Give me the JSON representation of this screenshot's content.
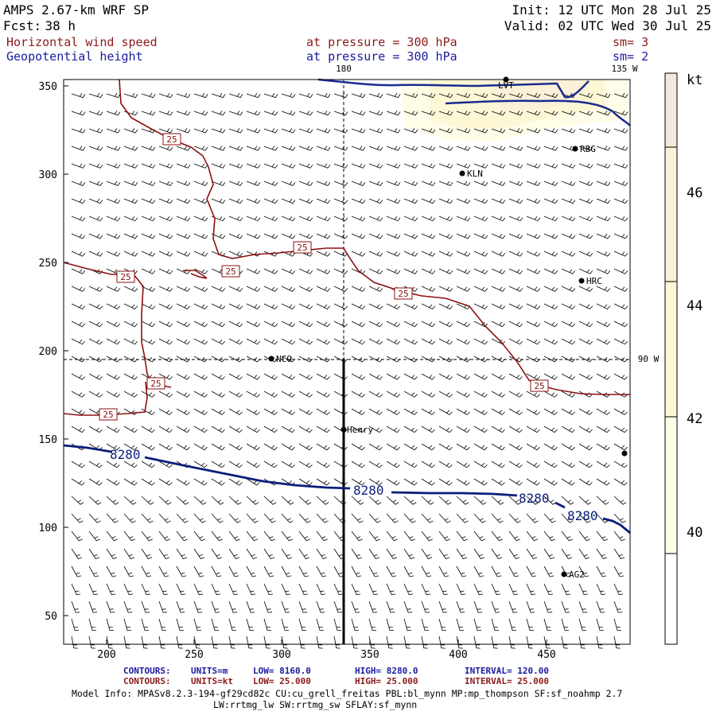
{
  "header": {
    "model": "AMPS 2.67-km WRF SP",
    "fcst_label": "Fcst:",
    "fcst_value": "38 h",
    "init": "Init: 12 UTC Mon 28 Jul 25",
    "valid": "Valid: 02 UTC Wed 30 Jul 25",
    "field1": {
      "name": "Horizontal wind speed",
      "level": "at pressure =  300 hPa",
      "smooth": "sm= 3"
    },
    "field2": {
      "name": "Geopotential height",
      "level": "at pressure =  300 hPa",
      "smooth": "sm= 2"
    }
  },
  "map": {
    "x_ticks": [
      "200",
      "250",
      "300",
      "350",
      "400",
      "450"
    ],
    "y_ticks": [
      "50",
      "100",
      "150",
      "200",
      "250",
      "300",
      "350"
    ],
    "lon_labels": {
      "top_180": "180",
      "top_135w": "135 W",
      "right_90w": "90 W"
    },
    "stations": [
      {
        "id": "LVT",
        "label": "LVT"
      },
      {
        "id": "RBG",
        "label": "RBG"
      },
      {
        "id": "KLN",
        "label": "KLN"
      },
      {
        "id": "HRC",
        "label": "HRC"
      },
      {
        "id": "NCO",
        "label": "NCO"
      },
      {
        "id": "Henry",
        "label": "Henry"
      },
      {
        "id": "AG2",
        "label": "AG2"
      }
    ],
    "speed_contour_label": "25",
    "height_contour_label": "8280"
  },
  "colorbar": {
    "unit": "kt",
    "ticks": [
      "40",
      "42",
      "44",
      "46"
    ],
    "colors": [
      "#ffffff",
      "#fffce8",
      "#fdf7d6",
      "#fbf0d8",
      "#f4e8dc"
    ]
  },
  "footer": {
    "line1": {
      "label": "CONTOURS:",
      "units": "UNITS=m",
      "low": "LOW=   8160.0",
      "high": "HIGH=  8280.0",
      "interval": "INTERVAL=   120.00"
    },
    "line2": {
      "label": "CONTOURS:",
      "units": "UNITS=kt",
      "low": "LOW=  25.000",
      "high": "HIGH=  25.000",
      "interval": "INTERVAL=   25.000"
    },
    "model_info": "Model Info: MPASv8.2.3-194-gf29cd82c CU:cu_grell_freitas PBL:bl_mynn MP:mp_thompson SF:sf_noahmp 2.7",
    "model_info2": "LW:rrtmg_lw SW:rrtmg_sw SFLAY:sf_mynn"
  },
  "colors": {
    "header_black": "#000000",
    "field_red": "#8b1a1a",
    "field_blue": "#1a1aa0",
    "speed_contour": "#8b1010",
    "height_contour": "#0a1e7a",
    "barb": "#000000"
  }
}
